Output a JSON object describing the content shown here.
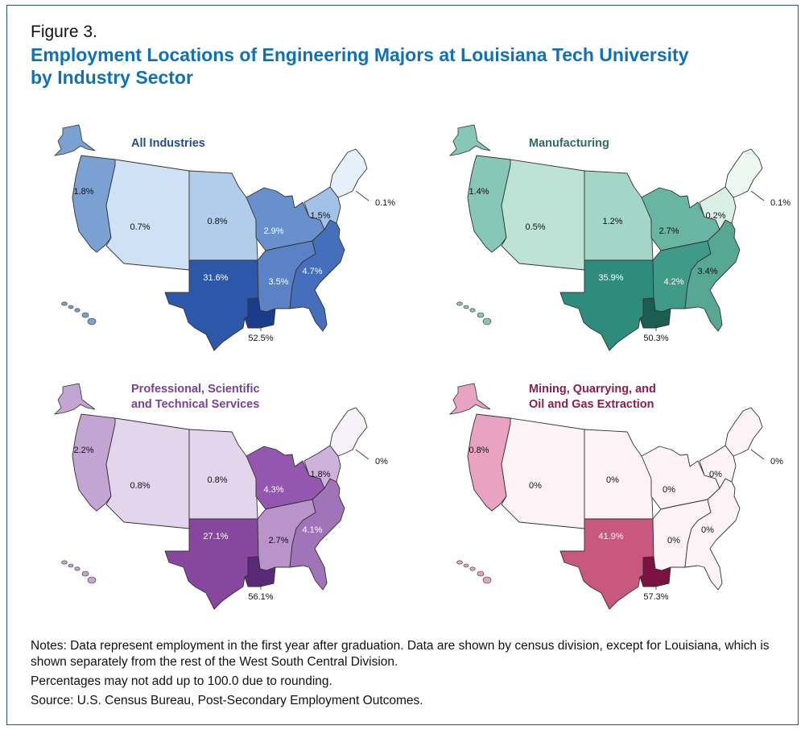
{
  "figure": {
    "label": "Figure 3.",
    "title_line1": "Employment Locations of Engineering Majors at Louisiana Tech University",
    "title_line2": "by Industry Sector"
  },
  "panels": [
    {
      "title_lines": [
        "All Industries"
      ],
      "title_color": "#1f4e8c",
      "regions": {
        "pacific": {
          "value": "1.8%",
          "color": "#7ba0d2"
        },
        "mountain": {
          "value": "0.7%",
          "color": "#cfe1f5"
        },
        "wnc": {
          "value": "0.8%",
          "color": "#b2cdea"
        },
        "enc": {
          "value": "2.9%",
          "color": "#6790cc"
        },
        "mid_atlantic": {
          "value": "1.5%",
          "color": "#a2c1e6"
        },
        "new_england": {
          "value": "0.1%",
          "color": "#e6f0fa"
        },
        "wsc": {
          "value": "31.6%",
          "color": "#2d57a9"
        },
        "esc": {
          "value": "3.5%",
          "color": "#5b82c4"
        },
        "south_atlantic": {
          "value": "4.7%",
          "color": "#456ebb"
        },
        "louisiana": {
          "value": "52.5%",
          "color": "#1b3b8c"
        }
      }
    },
    {
      "title_lines": [
        "Manufacturing"
      ],
      "title_color": "#2e6b63",
      "regions": {
        "pacific": {
          "value": "1.4%",
          "color": "#86c7b8"
        },
        "mountain": {
          "value": "0.5%",
          "color": "#bde3d7"
        },
        "wnc": {
          "value": "1.2%",
          "color": "#a4d6c7"
        },
        "enc": {
          "value": "2.7%",
          "color": "#69b5a3"
        },
        "mid_atlantic": {
          "value": "0.2%",
          "color": "#daf0e7"
        },
        "new_england": {
          "value": "0.1%",
          "color": "#eef8f3"
        },
        "wsc": {
          "value": "35.9%",
          "color": "#2e8c7c"
        },
        "esc": {
          "value": "4.2%",
          "color": "#3f9a88"
        },
        "south_atlantic": {
          "value": "3.4%",
          "color": "#56a895"
        },
        "louisiana": {
          "value": "50.3%",
          "color": "#1d5c53"
        }
      }
    },
    {
      "title_lines": [
        "Professional, Scientific",
        "and Technical Services"
      ],
      "title_color": "#7b3f98",
      "regions": {
        "pacific": {
          "value": "2.2%",
          "color": "#c3a5d4"
        },
        "mountain": {
          "value": "0.8%",
          "color": "#e3d5ec"
        },
        "wnc": {
          "value": "0.8%",
          "color": "#e3d5ec"
        },
        "enc": {
          "value": "4.3%",
          "color": "#9357b0"
        },
        "mid_atlantic": {
          "value": "1.8%",
          "color": "#cdb3dc"
        },
        "new_england": {
          "value": "0%",
          "color": "#f7f2fa"
        },
        "wsc": {
          "value": "27.1%",
          "color": "#87479f"
        },
        "esc": {
          "value": "2.7%",
          "color": "#b894cb"
        },
        "south_atlantic": {
          "value": "4.1%",
          "color": "#a174ba"
        },
        "louisiana": {
          "value": "56.1%",
          "color": "#5a2a78"
        }
      }
    },
    {
      "title_lines": [
        "Mining, Quarrying, and",
        "Oil and Gas Extraction"
      ],
      "title_color": "#8c1d4e",
      "regions": {
        "pacific": {
          "value": "0.8%",
          "color": "#e8a3c3"
        },
        "mountain": {
          "value": "0%",
          "color": "#fdf3f7"
        },
        "wnc": {
          "value": "0%",
          "color": "#fdf3f7"
        },
        "enc": {
          "value": "0%",
          "color": "#fdf3f7"
        },
        "mid_atlantic": {
          "value": "0%",
          "color": "#fdf3f7"
        },
        "new_england": {
          "value": "0%",
          "color": "#fdf3f7"
        },
        "wsc": {
          "value": "41.9%",
          "color": "#c8587e"
        },
        "esc": {
          "value": "0%",
          "color": "#fdf3f7"
        },
        "south_atlantic": {
          "value": "0%",
          "color": "#fdf3f7"
        },
        "louisiana": {
          "value": "57.3%",
          "color": "#7a1242"
        }
      }
    }
  ],
  "notes": {
    "line1": "Notes: Data represent employment in the first year after graduation. Data are shown by census division, except for Louisiana, which is shown separately from the rest of the West South Central Division.",
    "line2": "Percentages may not add up to 100.0 due to rounding.",
    "line3": "Source: U.S. Census Bureau, Post-Secondary Employment Outcomes."
  }
}
